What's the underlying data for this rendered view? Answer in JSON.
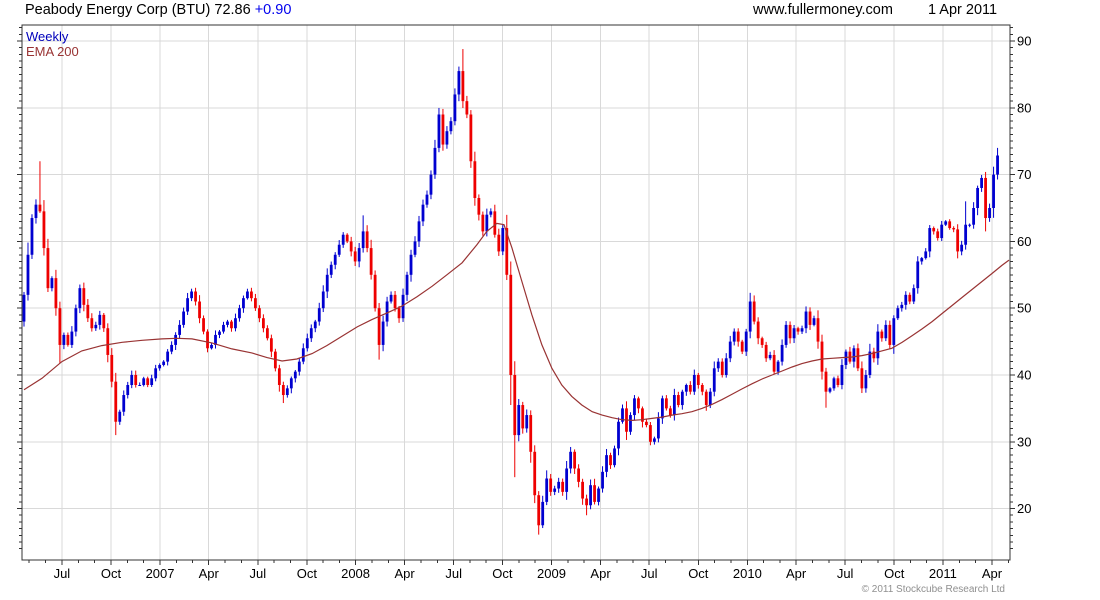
{
  "header": {
    "title": "Peabody Energy Corp (BTU) 72.86",
    "change": "+0.90",
    "website": "www.fullermoney.com",
    "date": "1 Apr 2011"
  },
  "legend": {
    "timeframe": "Weekly",
    "overlay": "EMA 200"
  },
  "footer": {
    "copyright": "© 2011 Stockcube Research Ltd"
  },
  "colors": {
    "up": "#0000d0",
    "down": "#ee0000",
    "ema": "#993333",
    "grid": "#d9d9d9",
    "frame": "#333333",
    "axis_text": "#000000",
    "change_text": "#0000ee",
    "weekly_text": "#0000bb",
    "copyright_text": "#8f8f8f"
  },
  "chart_data": {
    "type": "candlestick",
    "title": "Peabody Energy Corp (BTU)",
    "frequency": "Weekly",
    "overlay": "EMA 200",
    "last_close": 72.86,
    "change": 0.9,
    "date": "1 Apr 2011",
    "y_axis": {
      "side": "right",
      "min": 12.3,
      "max": 92.4,
      "major_ticks": [
        20,
        30,
        40,
        50,
        60,
        70,
        80,
        90
      ],
      "minor_step": 1,
      "grid": true
    },
    "x_ticks": [
      {
        "i": 10.0,
        "label": "Jul"
      },
      {
        "i": 22.3,
        "label": "Oct"
      },
      {
        "i": 34.6,
        "label": "2007"
      },
      {
        "i": 46.8,
        "label": "Apr"
      },
      {
        "i": 59.1,
        "label": "Jul"
      },
      {
        "i": 71.4,
        "label": "Oct"
      },
      {
        "i": 83.6,
        "label": "2008"
      },
      {
        "i": 95.9,
        "label": "Apr"
      },
      {
        "i": 108.2,
        "label": "Jul"
      },
      {
        "i": 120.4,
        "label": "Oct"
      },
      {
        "i": 132.7,
        "label": "2009"
      },
      {
        "i": 145.0,
        "label": "Apr"
      },
      {
        "i": 157.2,
        "label": "Jul"
      },
      {
        "i": 169.5,
        "label": "Oct"
      },
      {
        "i": 181.8,
        "label": "2010"
      },
      {
        "i": 194.0,
        "label": "Apr"
      },
      {
        "i": 206.3,
        "label": "Jul"
      },
      {
        "i": 218.6,
        "label": "Oct"
      },
      {
        "i": 230.8,
        "label": "2011"
      },
      {
        "i": 243.1,
        "label": "Apr"
      }
    ],
    "first_open": 48,
    "closes": [
      52,
      58,
      63.5,
      65.5,
      64.5,
      59,
      53,
      54.5,
      50,
      44.5,
      46,
      44.5,
      46.5,
      50,
      53,
      50.5,
      48.5,
      47,
      47.5,
      49,
      47,
      43,
      39,
      33,
      34.5,
      37,
      38.5,
      40,
      38.5,
      38.5,
      39.5,
      38.5,
      39.5,
      41,
      41.5,
      42,
      43.5,
      44.5,
      46,
      47.5,
      49.5,
      51.5,
      52.5,
      51,
      48.5,
      46.5,
      44,
      44.5,
      46,
      46.5,
      47.5,
      48,
      47,
      48.5,
      50,
      51.5,
      52.5,
      51.5,
      50,
      48.5,
      47,
      45.5,
      43.5,
      41,
      38.5,
      37,
      38,
      39.5,
      40.5,
      42,
      44,
      45.5,
      47,
      48,
      50,
      52.5,
      55,
      56.5,
      58,
      59.5,
      61,
      60,
      58.5,
      57,
      59,
      61.5,
      59,
      55,
      50,
      44.5,
      48,
      51,
      52,
      50,
      48.5,
      52,
      55,
      58,
      60,
      63,
      65.5,
      67,
      70,
      74,
      79,
      74.5,
      76.5,
      78,
      82,
      85.5,
      81,
      79,
      72,
      66.5,
      64,
      61.5,
      64,
      64.5,
      61,
      58.5,
      62,
      55,
      40,
      31,
      35.5,
      32,
      34,
      28.5,
      22,
      17.5,
      21,
      24.5,
      22.5,
      23,
      24,
      22.5,
      26,
      28.5,
      26,
      24,
      21.5,
      20.5,
      23.5,
      21,
      23,
      25.5,
      28,
      26.5,
      29,
      33,
      35,
      31.5,
      34,
      36.5,
      35,
      33,
      32.5,
      30,
      30.5,
      33.5,
      36.5,
      35,
      34,
      37,
      35.5,
      37.5,
      38.5,
      37.5,
      40,
      38.5,
      37.5,
      35.5,
      37.5,
      41,
      42,
      40,
      42.5,
      45,
      46.5,
      45,
      43.5,
      46.5,
      51,
      48,
      45.5,
      44.5,
      42.5,
      43,
      40.5,
      42,
      44.5,
      47.5,
      45.5,
      47,
      46.5,
      47,
      49.5,
      47.5,
      48.5,
      45,
      40.5,
      37.5,
      38,
      39.5,
      38.5,
      41.5,
      43.5,
      42,
      44,
      41,
      38,
      40,
      43.5,
      42.5,
      46.5,
      45.5,
      47.5,
      44.5,
      48.5,
      50,
      50.5,
      52,
      51,
      53,
      57,
      57.5,
      58.5,
      62,
      61.5,
      60.5,
      62.5,
      63,
      62,
      61.8,
      58.5,
      59.5,
      62.5,
      62.5,
      65,
      68,
      69.5,
      63.5,
      65,
      70,
      72.86
    ],
    "wick_overrides": [
      [
        4,
        72,
        null
      ],
      [
        9,
        null,
        41.8
      ],
      [
        23,
        null,
        31
      ],
      [
        65,
        null,
        35.8
      ],
      [
        85,
        63.9,
        null
      ],
      [
        89,
        null,
        42.3
      ],
      [
        110,
        88.8,
        null
      ],
      [
        122,
        null,
        35.5
      ],
      [
        123,
        null,
        24.7
      ],
      [
        129,
        null,
        16.1
      ],
      [
        141,
        null,
        19
      ],
      [
        182,
        52.3,
        null
      ],
      [
        201,
        null,
        35.1
      ],
      [
        236,
        66,
        null
      ],
      [
        241,
        70.4,
        61.5
      ],
      [
        244,
        74,
        null
      ]
    ],
    "ema_points": [
      [
        0,
        37.8
      ],
      [
        4.5,
        39.5
      ],
      [
        9.5,
        42
      ],
      [
        14.5,
        43.6
      ],
      [
        19.5,
        44.4
      ],
      [
        24.6,
        44.9
      ],
      [
        29.6,
        45.2
      ],
      [
        34.6,
        45.4
      ],
      [
        38.3,
        45.5
      ],
      [
        42.1,
        45.4
      ],
      [
        47.1,
        44.8
      ],
      [
        52.1,
        43.9
      ],
      [
        57.1,
        43.3
      ],
      [
        60.9,
        42.6
      ],
      [
        64.7,
        42.1
      ],
      [
        68.4,
        42.4
      ],
      [
        72.2,
        43.2
      ],
      [
        75.9,
        44.4
      ],
      [
        79.7,
        45.8
      ],
      [
        83.5,
        47.2
      ],
      [
        87.2,
        48.3
      ],
      [
        91,
        49.3
      ],
      [
        94.7,
        50.3
      ],
      [
        98.5,
        51.7
      ],
      [
        102.3,
        53.3
      ],
      [
        106,
        55
      ],
      [
        109.8,
        56.8
      ],
      [
        113.5,
        59.5
      ],
      [
        116,
        61.5
      ],
      [
        118.5,
        62.7
      ],
      [
        120.3,
        62.5
      ],
      [
        122.3,
        59
      ],
      [
        124.8,
        54
      ],
      [
        127.3,
        49
      ],
      [
        129.8,
        44.5
      ],
      [
        132.3,
        41
      ],
      [
        134.8,
        38.5
      ],
      [
        137.3,
        36.8
      ],
      [
        139.8,
        35.5
      ],
      [
        142.4,
        34.5
      ],
      [
        144.9,
        34
      ],
      [
        147.4,
        33.6
      ],
      [
        149.9,
        33.3
      ],
      [
        152.4,
        33.2
      ],
      [
        154.9,
        33.3
      ],
      [
        157.4,
        33.5
      ],
      [
        159.9,
        33.7
      ],
      [
        162.4,
        34
      ],
      [
        164.9,
        34.2
      ],
      [
        167.4,
        34.5
      ],
      [
        169.9,
        35
      ],
      [
        172.4,
        35.6
      ],
      [
        174.9,
        36.3
      ],
      [
        177.4,
        37.1
      ],
      [
        179.9,
        37.9
      ],
      [
        182.5,
        38.7
      ],
      [
        185,
        39.4
      ],
      [
        187.5,
        40
      ],
      [
        190,
        40.6
      ],
      [
        192.5,
        41.2
      ],
      [
        195,
        41.7
      ],
      [
        197.5,
        42.1
      ],
      [
        200,
        42.4
      ],
      [
        202.5,
        42.5
      ],
      [
        205,
        42.6
      ],
      [
        207.5,
        42.7
      ],
      [
        210,
        42.9
      ],
      [
        212.5,
        43.2
      ],
      [
        215,
        43.6
      ],
      [
        217.5,
        44
      ],
      [
        220.1,
        44.9
      ],
      [
        222.6,
        45.9
      ],
      [
        225.1,
        46.9
      ],
      [
        227.6,
        48
      ],
      [
        230.1,
        49.2
      ],
      [
        232.6,
        50.4
      ],
      [
        235.1,
        51.6
      ],
      [
        237.6,
        52.8
      ],
      [
        240.1,
        54
      ],
      [
        242.6,
        55.2
      ],
      [
        245.1,
        56.4
      ],
      [
        247.1,
        57.2
      ]
    ]
  }
}
